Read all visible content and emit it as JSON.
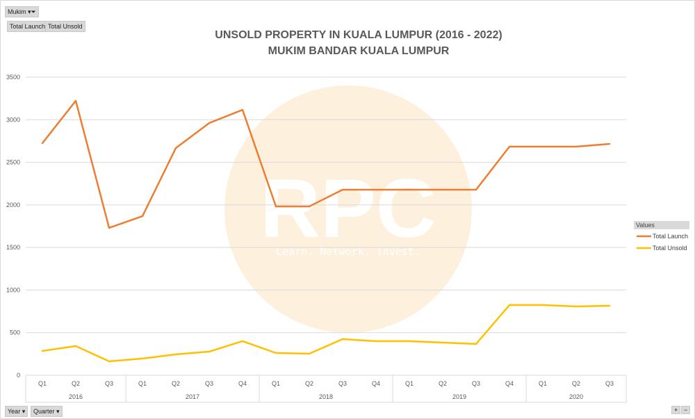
{
  "filters": {
    "mukim": "Mukim",
    "field_buttons": [
      "Total Launch",
      "Total Unsold"
    ],
    "year": "Year",
    "quarter": "Quarter"
  },
  "zoom": {
    "plus": "+",
    "minus": "−"
  },
  "watermark": {
    "text": "RPC",
    "tagline": "Learn. Network. invest.",
    "color": "#fdf1de"
  },
  "chart_data": {
    "type": "line",
    "title": "UNSOLD PROPERTY IN KUALA LUMPUR (2016 - 2022)",
    "subtitle": "MUKIM BANDAR KUALA LUMPUR",
    "ylim": [
      0,
      3500
    ],
    "yticks": [
      0,
      500,
      1000,
      1500,
      2000,
      2500,
      3000,
      3500
    ],
    "grid": true,
    "legend_title": "Values",
    "legend_position": "right",
    "years": [
      {
        "label": "2016",
        "count": 3
      },
      {
        "label": "2017",
        "count": 4
      },
      {
        "label": "2018",
        "count": 4
      },
      {
        "label": "2019",
        "count": 4
      },
      {
        "label": "2020",
        "count": 3
      }
    ],
    "categories": [
      "Q1",
      "Q2",
      "Q3",
      "Q1",
      "Q2",
      "Q3",
      "Q4",
      "Q1",
      "Q2",
      "Q3",
      "Q4",
      "Q1",
      "Q2",
      "Q3",
      "Q4",
      "Q1",
      "Q2",
      "Q3"
    ],
    "series": [
      {
        "name": "Total Launch",
        "color": "#ed7d31",
        "values": [
          2725,
          3222,
          1730,
          1868,
          2667,
          2961,
          3116,
          1982,
          1982,
          2178,
          2178,
          2178,
          2178,
          2178,
          2684,
          2684,
          2684,
          2716
        ]
      },
      {
        "name": "Total Unsold",
        "color": "#ffc000",
        "values": [
          285,
          343,
          163,
          196,
          245,
          277,
          400,
          261,
          253,
          424,
          400,
          400,
          383,
          367,
          824,
          824,
          808,
          816
        ]
      }
    ]
  }
}
